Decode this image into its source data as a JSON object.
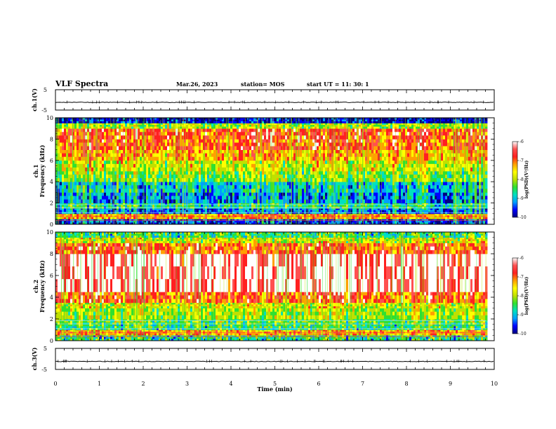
{
  "header": {
    "title": "VLF Spectra",
    "date": "Mar.26, 2023",
    "station": "station= MOS",
    "start": "start  UT =   11: 30: 1"
  },
  "chart_data": [
    {
      "type": "line",
      "panel": "ch1-waveform",
      "ylabel": "ch.1(V)",
      "ylim": [
        -5,
        5
      ],
      "y_ticks": [
        "5",
        "-5"
      ],
      "level": -1.2,
      "xlim": [
        0,
        10
      ]
    },
    {
      "type": "heatmap",
      "panel": "ch1-spectrogram",
      "ylabel_top": "ch.1",
      "ylabel": "Frequency (kHz)",
      "ylim": [
        0,
        10
      ],
      "y_ticks": [
        "0",
        "2",
        "4",
        "6",
        "8",
        "10"
      ],
      "xlim": [
        0,
        9.82
      ],
      "color_scale": {
        "label": "log(PSD)(V²/Hz)",
        "range": [
          -10,
          -6
        ],
        "ticks": [
          "-6",
          "-7",
          "-8",
          "-9",
          "-10"
        ]
      },
      "bands": [
        {
          "f_low": 0.0,
          "f_high": 0.5,
          "level": -9.5
        },
        {
          "f_low": 0.5,
          "f_high": 1.0,
          "level": -7.2
        },
        {
          "f_low": 1.0,
          "f_high": 1.5,
          "level": -9.3
        },
        {
          "f_low": 1.5,
          "f_high": 2.0,
          "level": -8.6
        },
        {
          "f_low": 2.0,
          "f_high": 3.0,
          "level": -9.2
        },
        {
          "f_low": 3.0,
          "f_high": 4.0,
          "level": -8.9
        },
        {
          "f_low": 4.0,
          "f_high": 5.0,
          "level": -8.2
        },
        {
          "f_low": 5.0,
          "f_high": 6.0,
          "level": -7.8
        },
        {
          "f_low": 6.0,
          "f_high": 7.0,
          "level": -7.3
        },
        {
          "f_low": 7.0,
          "f_high": 8.0,
          "level": -6.9
        },
        {
          "f_low": 8.0,
          "f_high": 9.0,
          "level": -6.8
        },
        {
          "f_low": 9.0,
          "f_high": 9.5,
          "level": -8.0
        },
        {
          "f_low": 9.5,
          "f_high": 10.0,
          "level": -9.8
        }
      ]
    },
    {
      "type": "heatmap",
      "panel": "ch2-spectrogram",
      "ylabel_top": "ch.2",
      "ylabel": "Frequency (kHz)",
      "ylim": [
        0,
        10
      ],
      "y_ticks": [
        "0",
        "2",
        "4",
        "6",
        "8",
        "10"
      ],
      "xlim": [
        0,
        9.82
      ],
      "color_scale": {
        "label": "log(PSD)(V²/Hz)",
        "range": [
          -10,
          -6
        ],
        "ticks": [
          "-6",
          "-7",
          "-8",
          "-9",
          "-10"
        ]
      },
      "bands": [
        {
          "f_low": 0.0,
          "f_high": 0.5,
          "level": -8.6
        },
        {
          "f_low": 0.5,
          "f_high": 1.0,
          "level": -7.2
        },
        {
          "f_low": 1.0,
          "f_high": 1.5,
          "level": -8.5
        },
        {
          "f_low": 1.5,
          "f_high": 2.0,
          "level": -8.3
        },
        {
          "f_low": 2.0,
          "f_high": 3.0,
          "level": -8.0
        },
        {
          "f_low": 3.0,
          "f_high": 3.5,
          "level": -7.8
        },
        {
          "f_low": 3.5,
          "f_high": 4.5,
          "level": -6.9
        },
        {
          "f_low": 4.5,
          "f_high": 8.0,
          "level": -6.1
        },
        {
          "f_low": 8.0,
          "f_high": 9.0,
          "level": -6.9
        },
        {
          "f_low": 9.0,
          "f_high": 9.5,
          "level": -7.8
        },
        {
          "f_low": 9.5,
          "f_high": 10.0,
          "level": -8.5
        }
      ]
    },
    {
      "type": "line",
      "panel": "ch3-waveform",
      "ylabel": "ch.3(V)",
      "ylim": [
        -5,
        5
      ],
      "y_ticks": [
        "5",
        "-5"
      ],
      "level": -1.2,
      "xlim": [
        0,
        10
      ]
    }
  ],
  "x_axis": {
    "label": "Time (min)",
    "ticks": [
      "0",
      "1",
      "2",
      "3",
      "4",
      "5",
      "6",
      "7",
      "8",
      "9",
      "10"
    ],
    "xlim": [
      0,
      10
    ]
  },
  "colors": {
    "colormap": [
      "#000080",
      "#0000ff",
      "#00a0ff",
      "#00e0c0",
      "#30e030",
      "#c0e000",
      "#ffff00",
      "#ffa000",
      "#ff2020",
      "#ff5050",
      "#ffffff"
    ]
  }
}
